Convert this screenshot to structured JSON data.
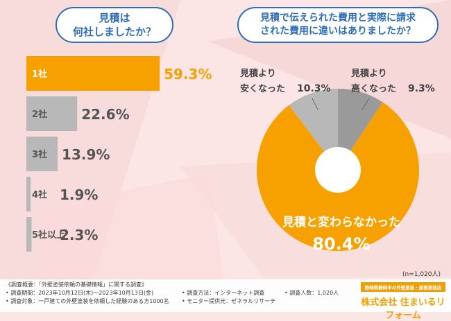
{
  "left_question": [
    "見積は",
    "何社しましたか？"
  ],
  "right_question": [
    "見積で伝えられた費用と実際に請求",
    "された費用に違いはありましたか？"
  ],
  "chart_data": [
    {
      "type": "bar",
      "orientation": "horizontal",
      "categories": [
        "1社",
        "2社",
        "3社",
        "4社",
        "5社以上"
      ],
      "values": [
        59.3,
        22.6,
        13.9,
        1.9,
        2.3
      ],
      "value_labels": [
        "59.3%",
        "22.6%",
        "13.9%",
        "1.9%",
        "2.3%"
      ],
      "xlim": [
        0,
        100
      ],
      "colors": {
        "highlight": "#f7a100",
        "default": "#b8b8b8"
      }
    },
    {
      "type": "pie",
      "donut": true,
      "categories": [
        "見積と変わらなかった",
        "見積より安くなった",
        "見積より高くなった"
      ],
      "values": [
        80.4,
        10.3,
        9.3
      ],
      "value_labels": [
        "80.4%",
        "10.3%",
        "9.3%"
      ],
      "colors": [
        "#f7a100",
        "#b8b8b8",
        "#9a9a9a"
      ],
      "label_lines": [
        [
          "見積と変わらなかった"
        ],
        [
          "見積より",
          "安くなった"
        ],
        [
          "見積より",
          "高くなった"
        ]
      ],
      "note": "(n=1,020人)"
    }
  ],
  "footer": {
    "lines": [
      "《調査概要：「外壁塗装依頼の基礎情報」に関する調査》",
      "• 調査期間：2023年10月12日(木)～2023年10月13日(金)",
      "• 調査対象：一戸建ての外壁塗装を依頼した経験のある方1000名",
      "• 調査方法：インターネット調査",
      "• モニター提供元：ゼネラルリサーチ",
      "• 調査人数：1,020人"
    ]
  },
  "logo": {
    "top": "静岡県静岡市の外壁塗装・屋根塗装店",
    "main": "株式会社 住まいるリフォーム"
  }
}
